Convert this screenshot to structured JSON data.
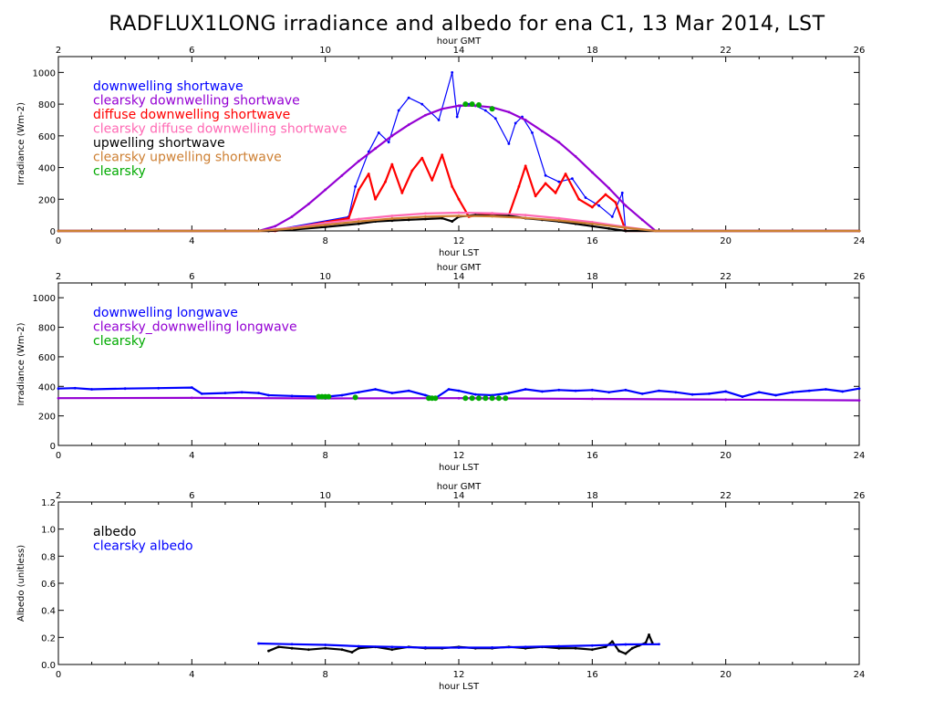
{
  "title": "RADFLUX1LONG irradiance and albedo for ena C1, 13 Mar 2014, LST",
  "chart_data": [
    {
      "type": "line",
      "xlabel": "hour LST",
      "x2label": "hour GMT",
      "ylabel": "Irradiance (Wm-2)",
      "xlim": [
        0,
        24
      ],
      "ylim": [
        0,
        1100
      ],
      "x2lim": [
        2,
        26
      ],
      "xticks": [
        "0",
        "4",
        "8",
        "12",
        "16",
        "20",
        "24"
      ],
      "x2ticks": [
        "2",
        "6",
        "10",
        "14",
        "18",
        "22",
        "26"
      ],
      "yticks": [
        "0",
        "200",
        "400",
        "600",
        "800",
        "1000"
      ],
      "grid": false,
      "legend": "top-left",
      "series": [
        {
          "name": "downwelling shortwave",
          "color": "#0000ff",
          "x": [
            0,
            6.3,
            8.7,
            8.9,
            9.3,
            9.6,
            9.9,
            10.2,
            10.5,
            10.9,
            11.4,
            11.8,
            11.95,
            12.05,
            12.3,
            12.5,
            12.8,
            13.1,
            13.5,
            13.7,
            13.9,
            14.2,
            14.6,
            15.0,
            15.4,
            15.8,
            16.2,
            16.6,
            16.9,
            17.0,
            24
          ],
          "y": [
            0,
            0,
            90,
            280,
            500,
            620,
            560,
            760,
            840,
            800,
            700,
            1000,
            720,
            790,
            800,
            790,
            760,
            710,
            550,
            680,
            720,
            620,
            350,
            310,
            330,
            210,
            160,
            90,
            240,
            0,
            0
          ]
        },
        {
          "name": "clearsky downwelling shortwave",
          "color": "#9400d3",
          "x": [
            0,
            6.0,
            6.5,
            7.0,
            7.5,
            8.0,
            8.5,
            9.0,
            9.5,
            10.0,
            10.5,
            11.0,
            11.5,
            12.0,
            12.5,
            13.0,
            13.5,
            14.0,
            14.5,
            15.0,
            15.5,
            16.0,
            16.5,
            17.0,
            17.5,
            17.9,
            24
          ],
          "y": [
            0,
            0,
            30,
            90,
            170,
            260,
            350,
            440,
            520,
            600,
            670,
            730,
            770,
            790,
            790,
            780,
            750,
            700,
            630,
            560,
            470,
            370,
            270,
            160,
            70,
            0,
            0
          ]
        },
        {
          "name": "diffuse downwelling shortwave",
          "color": "#ff0000",
          "x": [
            0,
            6.5,
            8.7,
            9.0,
            9.3,
            9.5,
            9.8,
            10.0,
            10.3,
            10.6,
            10.9,
            11.2,
            11.5,
            11.8,
            12.0,
            12.3,
            12.6,
            13.0,
            13.5,
            13.8,
            14.0,
            14.3,
            14.6,
            14.9,
            15.2,
            15.6,
            16.0,
            16.4,
            16.7,
            17.0,
            24
          ],
          "y": [
            0,
            0,
            80,
            260,
            360,
            200,
            310,
            420,
            240,
            380,
            460,
            320,
            480,
            280,
            200,
            90,
            100,
            110,
            100,
            280,
            410,
            220,
            300,
            240,
            360,
            200,
            150,
            230,
            180,
            0,
            0
          ]
        },
        {
          "name": "clearsky diffuse downwelling shortwave",
          "color": "#ff69b4",
          "x": [
            0,
            6.0,
            7.0,
            8.0,
            9.0,
            10.0,
            11.0,
            12.0,
            13.0,
            14.0,
            15.0,
            16.0,
            17.0,
            17.9,
            24
          ],
          "y": [
            0,
            0,
            20,
            50,
            75,
            95,
            110,
            115,
            112,
            100,
            80,
            55,
            25,
            0,
            0
          ]
        },
        {
          "name": "upwelling shortwave",
          "color": "#000000",
          "x": [
            0,
            6.3,
            7.0,
            8.0,
            9.0,
            9.5,
            10.0,
            10.5,
            11.0,
            11.5,
            11.8,
            12.0,
            12.5,
            13.0,
            13.5,
            14.0,
            14.5,
            15.0,
            15.5,
            16.0,
            16.5,
            17.0,
            24
          ],
          "y": [
            0,
            0,
            8,
            25,
            45,
            60,
            65,
            70,
            75,
            80,
            60,
            90,
            100,
            95,
            95,
            80,
            70,
            60,
            45,
            30,
            15,
            0,
            0
          ]
        },
        {
          "name": "clearsky upwelling shortwave",
          "color": "#cd7f32",
          "x": [
            0,
            6.0,
            7.0,
            8.0,
            9.0,
            10.0,
            11.0,
            12.0,
            13.0,
            14.0,
            15.0,
            16.0,
            17.0,
            17.9,
            24
          ],
          "y": [
            0,
            0,
            15,
            38,
            60,
            78,
            90,
            95,
            92,
            82,
            66,
            45,
            20,
            0,
            0
          ]
        },
        {
          "name": "clearsky",
          "color": "#00aa00",
          "x": [
            12.2,
            12.4,
            12.6,
            13.0
          ],
          "y": [
            800,
            800,
            795,
            770
          ]
        }
      ]
    },
    {
      "type": "line",
      "xlabel": "hour LST",
      "x2label": "hour GMT",
      "ylabel": "Irradiance (Wm-2)",
      "xlim": [
        0,
        24
      ],
      "ylim": [
        0,
        1100
      ],
      "x2lim": [
        2,
        26
      ],
      "xticks": [
        "0",
        "4",
        "8",
        "12",
        "16",
        "20",
        "24"
      ],
      "x2ticks": [
        "2",
        "6",
        "10",
        "14",
        "18",
        "22",
        "26"
      ],
      "yticks": [
        "0",
        "200",
        "400",
        "600",
        "800",
        "1000"
      ],
      "grid": false,
      "legend": "top-left",
      "series": [
        {
          "name": "downwelling longwave",
          "color": "#0000ff",
          "x": [
            0,
            0.5,
            1.0,
            2.0,
            3.0,
            4.0,
            4.3,
            5.0,
            5.5,
            6.0,
            6.3,
            7.0,
            8.0,
            8.5,
            9.0,
            9.5,
            10.0,
            10.5,
            11.0,
            11.3,
            11.7,
            12.0,
            12.5,
            13.0,
            13.5,
            14.0,
            14.5,
            15.0,
            15.5,
            16.0,
            16.5,
            17.0,
            17.5,
            18.0,
            18.5,
            19.0,
            19.5,
            20.0,
            20.5,
            21.0,
            21.5,
            22.0,
            22.5,
            23.0,
            23.5,
            24.0
          ],
          "y": [
            385,
            388,
            380,
            385,
            388,
            392,
            350,
            355,
            360,
            355,
            340,
            335,
            330,
            340,
            360,
            380,
            355,
            370,
            340,
            320,
            380,
            370,
            345,
            340,
            355,
            380,
            365,
            375,
            370,
            375,
            360,
            375,
            350,
            370,
            360,
            345,
            350,
            365,
            330,
            360,
            340,
            360,
            370,
            380,
            365,
            385
          ]
        },
        {
          "name": "clearsky_downwelling longwave",
          "color": "#9400d3",
          "x": [
            0,
            4.0,
            8.0,
            12.0,
            16.0,
            20.0,
            24.0
          ],
          "y": [
            320,
            322,
            318,
            320,
            315,
            310,
            305
          ]
        },
        {
          "name": "clearsky",
          "color": "#00aa00",
          "x": [
            7.8,
            7.9,
            8.0,
            8.1,
            8.9,
            11.1,
            11.2,
            11.3,
            12.2,
            12.4,
            12.6,
            12.8,
            13.0,
            13.2,
            13.4
          ],
          "y": [
            330,
            330,
            330,
            330,
            325,
            320,
            320,
            320,
            320,
            320,
            320,
            320,
            320,
            320,
            320
          ]
        }
      ]
    },
    {
      "type": "line",
      "xlabel": "hour LST",
      "x2label": "hour GMT",
      "ylabel": "Albedo (unitless)",
      "xlim": [
        0,
        24
      ],
      "ylim": [
        0,
        1.2
      ],
      "x2lim": [
        2,
        26
      ],
      "xticks": [
        "0",
        "4",
        "8",
        "12",
        "16",
        "20",
        "24"
      ],
      "x2ticks": [
        "2",
        "6",
        "10",
        "14",
        "18",
        "22",
        "26"
      ],
      "yticks": [
        "0.0",
        "0.2",
        "0.4",
        "0.6",
        "0.8",
        "1.0",
        "1.2"
      ],
      "grid": false,
      "legend": "top-left",
      "series": [
        {
          "name": "albedo",
          "color": "#000000",
          "x": [
            6.3,
            6.6,
            7.0,
            7.5,
            8.0,
            8.5,
            8.8,
            9.0,
            9.5,
            10.0,
            10.5,
            11.0,
            11.5,
            12.0,
            12.5,
            13.0,
            13.5,
            14.0,
            14.5,
            15.0,
            15.5,
            16.0,
            16.4,
            16.6,
            16.8,
            17.0,
            17.2,
            17.4,
            17.6,
            17.7,
            17.8
          ],
          "y": [
            0.1,
            0.13,
            0.12,
            0.11,
            0.12,
            0.11,
            0.09,
            0.12,
            0.13,
            0.11,
            0.13,
            0.12,
            0.12,
            0.13,
            0.12,
            0.12,
            0.13,
            0.12,
            0.13,
            0.12,
            0.12,
            0.11,
            0.13,
            0.17,
            0.1,
            0.08,
            0.12,
            0.14,
            0.16,
            0.22,
            0.16
          ]
        },
        {
          "name": "clearsky albedo",
          "color": "#0000ff",
          "x": [
            6.0,
            7.0,
            8.0,
            9.0,
            10.0,
            11.0,
            12.0,
            13.0,
            14.0,
            15.0,
            16.0,
            17.0,
            18.0
          ],
          "y": [
            0.155,
            0.15,
            0.145,
            0.135,
            0.13,
            0.125,
            0.125,
            0.125,
            0.13,
            0.135,
            0.14,
            0.148,
            0.15
          ]
        }
      ]
    }
  ]
}
